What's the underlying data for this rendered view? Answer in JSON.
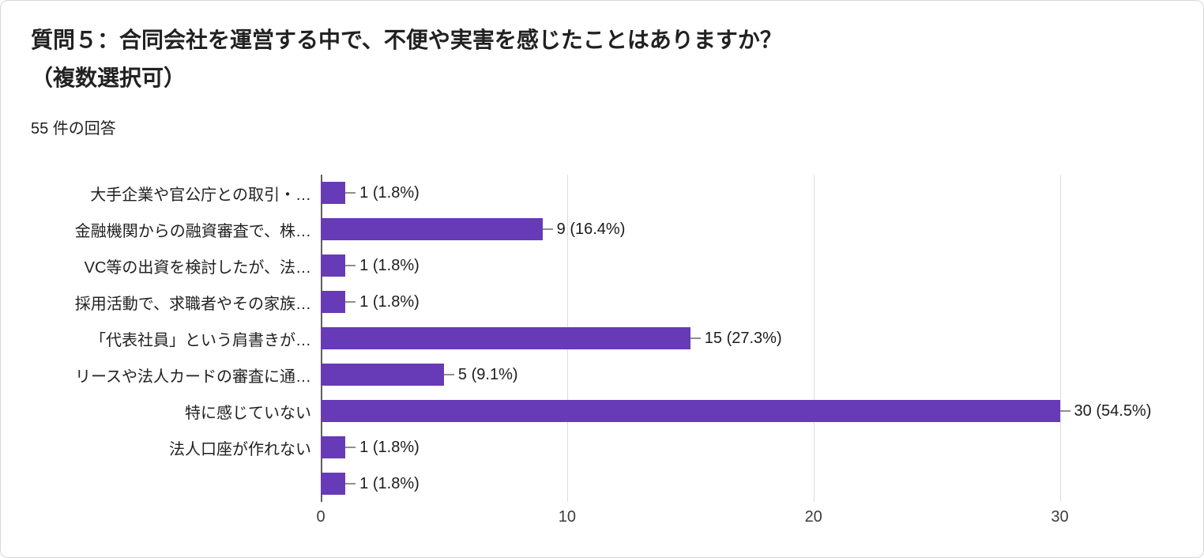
{
  "header": {
    "title": "質問５：合同会社を運営する中で、不便や実害を感じたことはありますか？\n（複数選択可）",
    "response_count": "55 件の回答"
  },
  "chart_data": {
    "type": "bar",
    "orientation": "horizontal",
    "title": "質問５：合同会社を運営する中で、不便や実害を感じたことはありますか？（複数選択可）",
    "subtitle": "55 件の回答",
    "categories": [
      "大手企業や官公庁との取引・…",
      "金融機関からの融資審査で、株…",
      "VC等の出資を検討したが、法…",
      "採用活動で、求職者やその家族…",
      "「代表社員」という肩書きが…",
      "リースや法人カードの審査に通…",
      "特に感じていない",
      "法人口座が作れない",
      ""
    ],
    "values": [
      1,
      9,
      1,
      1,
      15,
      5,
      30,
      1,
      1
    ],
    "labels": [
      "1 (1.8%)",
      "9 (16.4%)",
      "1 (1.8%)",
      "1 (1.8%)",
      "15 (27.3%)",
      "5 (9.1%)",
      "30 (54.5%)",
      "1 (1.8%)",
      "1 (1.8%)"
    ],
    "x_ticks": [
      0,
      10,
      20,
      30
    ],
    "xlim": [
      0,
      34.6
    ],
    "grid": true,
    "legend": false,
    "bar_color": "#673ab7",
    "total_responses": 55
  }
}
